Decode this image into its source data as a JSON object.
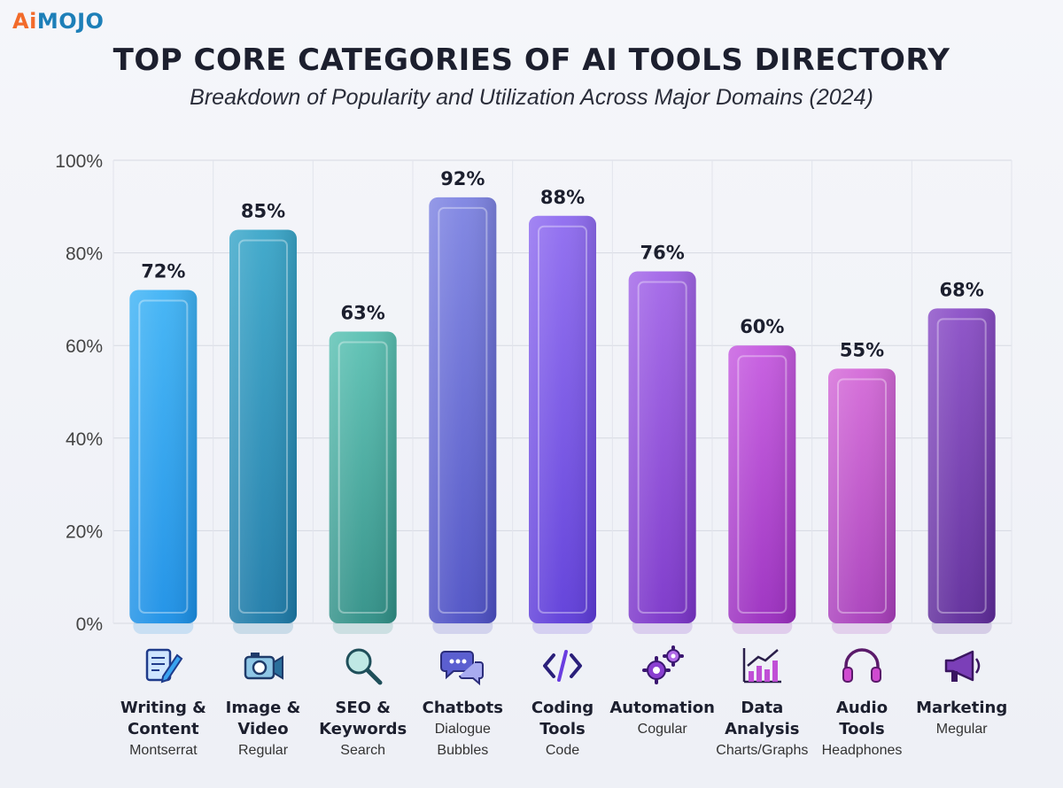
{
  "logo": {
    "ai": "Ai",
    "rest": "MOJO"
  },
  "chart_data": {
    "type": "bar",
    "title": "TOP CORE CATEGORIES OF AI TOOLS DIRECTORY",
    "subtitle": "Breakdown of Popularity and Utilization Across Major Domains (2024)",
    "categories": [
      "Writing & Content",
      "Image & Video",
      "SEO & Keywords",
      "Chatbots",
      "Coding Tools",
      "Automation",
      "Data Analysis",
      "Audio Tools",
      "Marketing"
    ],
    "values": [
      72,
      85,
      63,
      92,
      88,
      76,
      60,
      55,
      68
    ],
    "value_labels": [
      "72%",
      "85%",
      "63%",
      "92%",
      "88%",
      "76%",
      "60%",
      "55%",
      "68%"
    ],
    "ylim": [
      0,
      100
    ],
    "yticks": [
      "0%",
      "20%",
      "40%",
      "60%",
      "80%",
      "100%"
    ],
    "grid": true,
    "bar_colors": [
      [
        "#3fb3f5",
        "#1a8fe6"
      ],
      [
        "#3aa6c9",
        "#1c7aa8"
      ],
      [
        "#5bc1b3",
        "#2f8f86"
      ],
      [
        "#7e84e2",
        "#4c4fc4"
      ],
      [
        "#8f6cf0",
        "#5d3bd9"
      ],
      [
        "#a266e8",
        "#7a33c9"
      ],
      [
        "#c65be0",
        "#9a2cbf"
      ],
      [
        "#d46ad8",
        "#a83dbb"
      ],
      [
        "#8b4fc7",
        "#5e2a9a"
      ]
    ]
  },
  "categories_detail": [
    {
      "name": "Writing &\nContent",
      "sub": "Montserrat",
      "icon": "edit-document-icon"
    },
    {
      "name": "Image &\nVideo",
      "sub": "Regular",
      "icon": "camera-video-icon"
    },
    {
      "name": "SEO &\nKeywords",
      "sub": "Search",
      "icon": "search-icon"
    },
    {
      "name": "Chatbots",
      "sub": "Dialogue\nBubbles",
      "icon": "chat-bubbles-icon"
    },
    {
      "name": "Coding\nTools",
      "sub": "Code",
      "icon": "code-icon"
    },
    {
      "name": "Automation",
      "sub": "Cogular",
      "icon": "gears-icon"
    },
    {
      "name": "Data\nAnalysis",
      "sub": "Charts/Graphs",
      "icon": "bar-chart-icon"
    },
    {
      "name": "Audio\nTools",
      "sub": "Headphones",
      "icon": "headphones-icon"
    },
    {
      "name": "Marketing",
      "sub": "Megular",
      "icon": "megaphone-icon"
    }
  ]
}
